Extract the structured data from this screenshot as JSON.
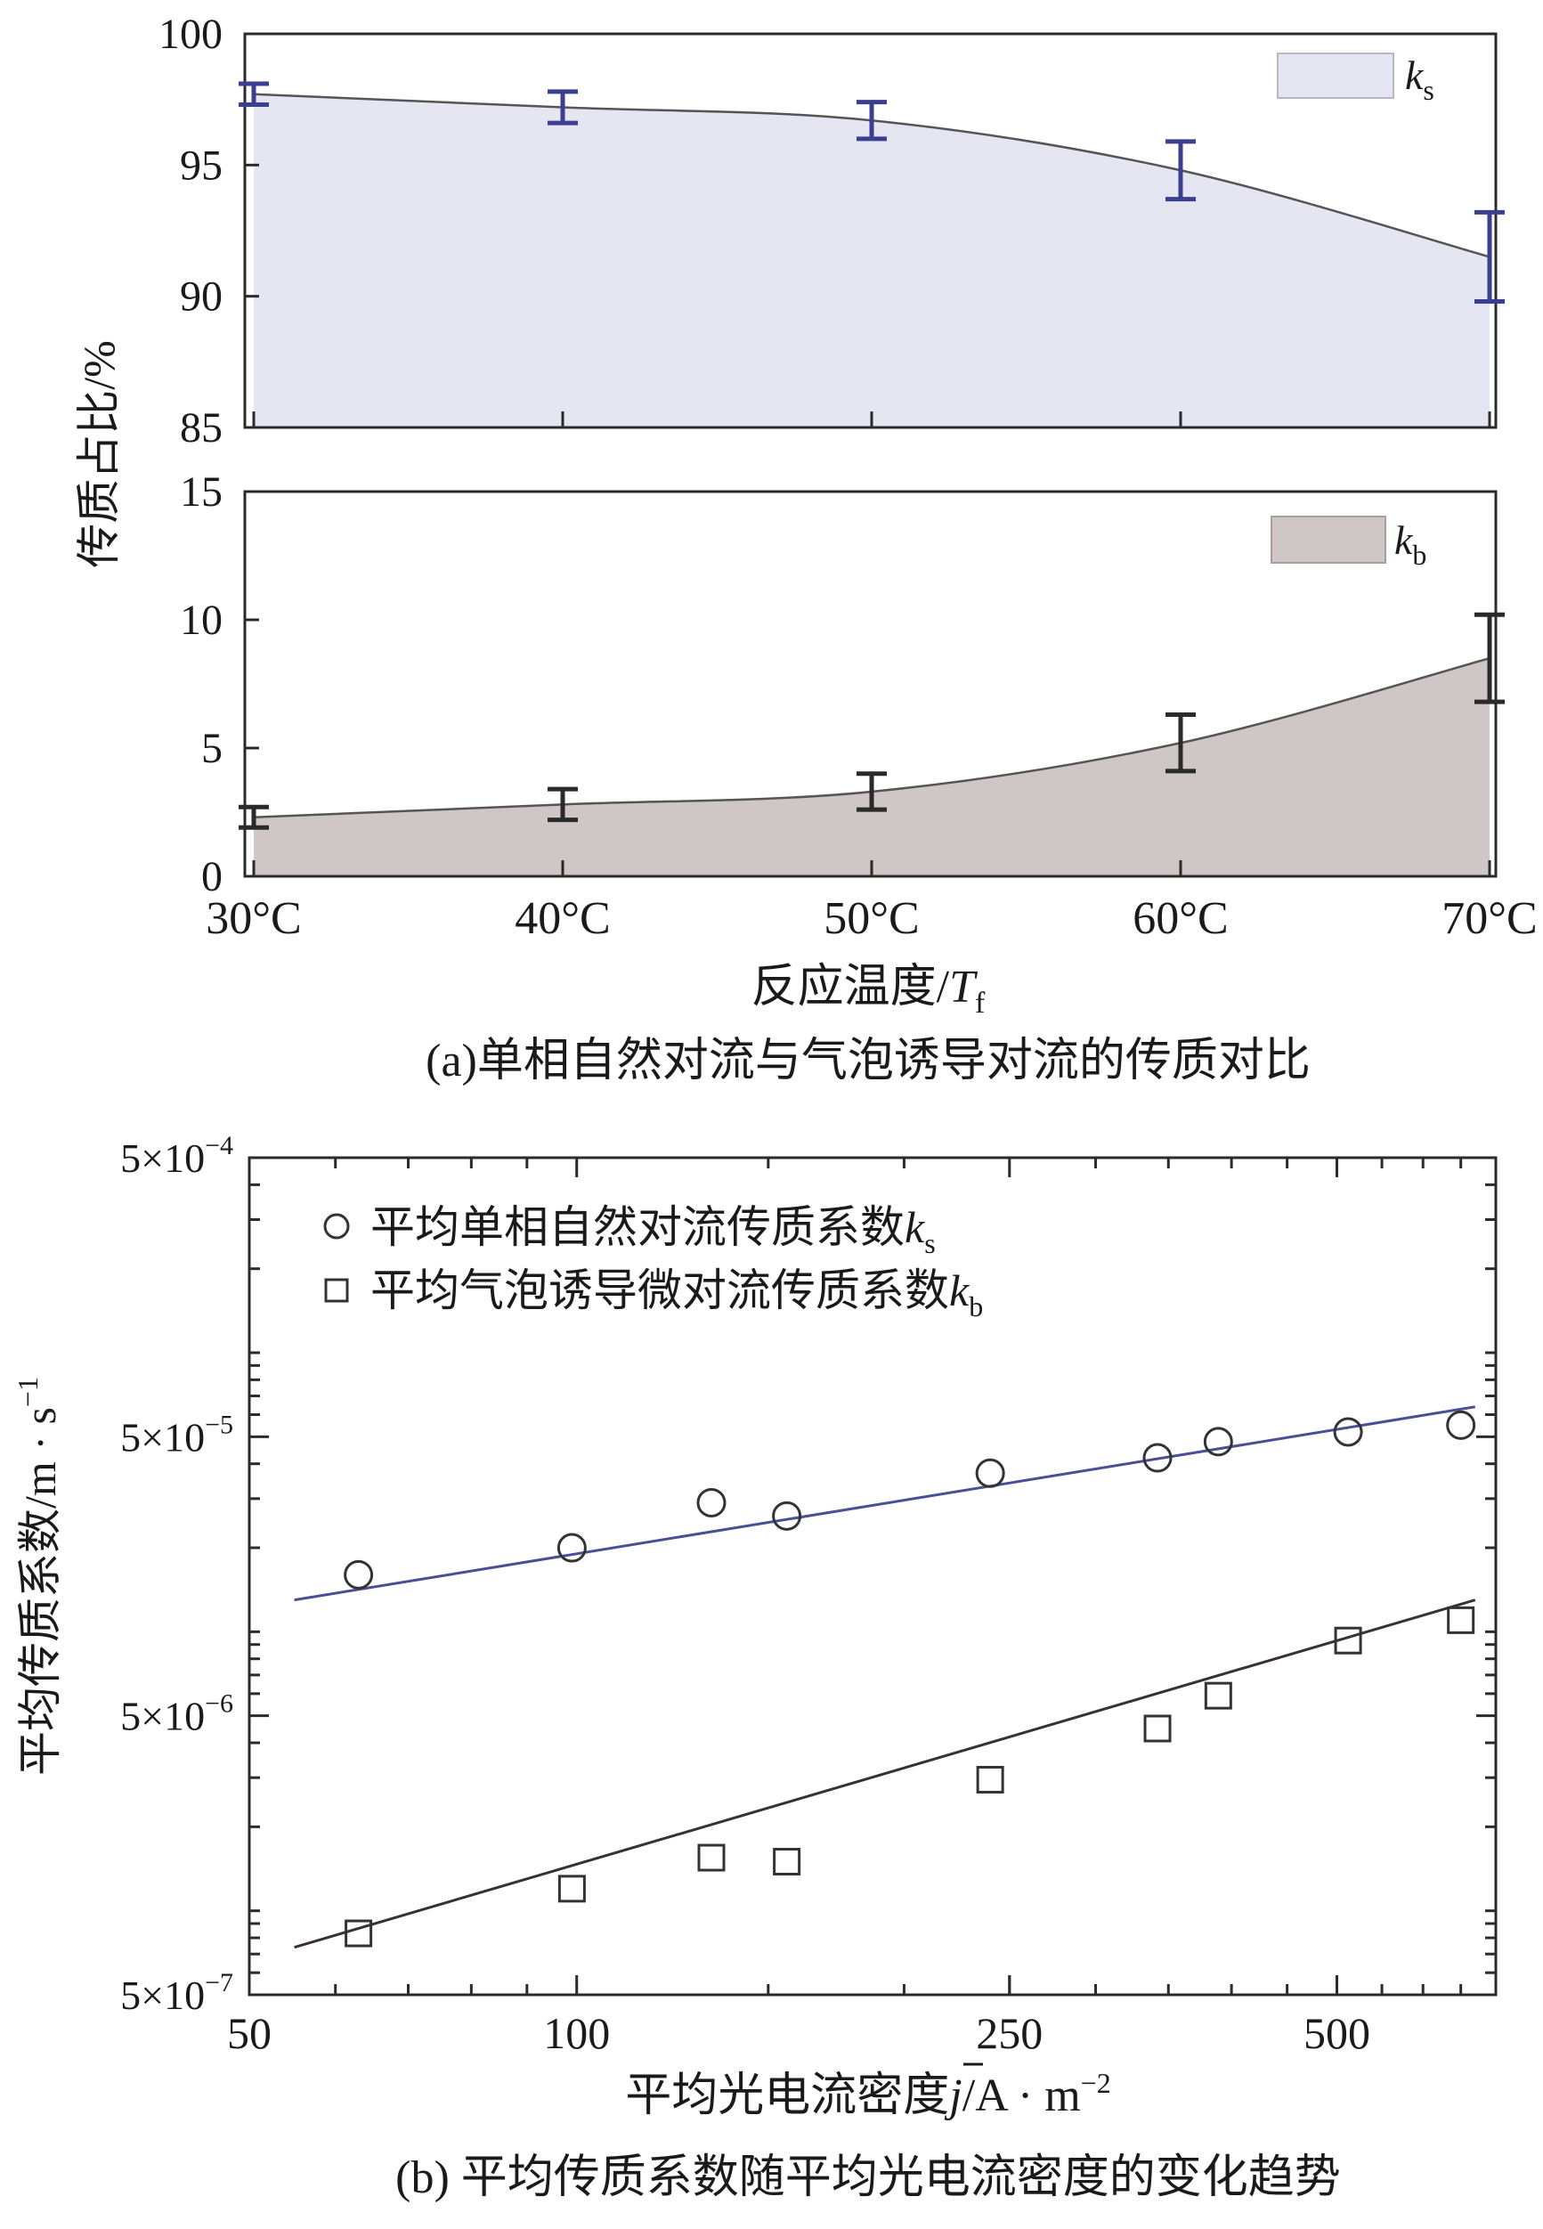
{
  "figure_a": {
    "caption": "(a)单相自然对流与气泡诱导对流的传质对比",
    "ylabel": "传质占比/%",
    "xlabel_main": "反应温度/",
    "xlabel_var": "T",
    "xlabel_sub": "f",
    "top_legend_var": "k",
    "top_legend_sub": "s",
    "bottom_legend_var": "k",
    "bottom_legend_sub": "b",
    "colors": {
      "ks_fill": "#e6e6f2",
      "ks_error": "#3b3f8f",
      "kb_fill": "#cfc6c6",
      "kb_error": "#2a2a2a",
      "line": "#555555"
    }
  },
  "figure_b": {
    "caption": "(b) 平均传质系数随平均光电流密度的变化趋势",
    "ylabel": "平均传质系数/m · s",
    "ylabel_sup": "−1",
    "xlabel_main": "平均光电流密度",
    "xlabel_var": "j",
    "xlabel_unit": "/A · m",
    "xlabel_sup": "−2",
    "legend_ks_text": "平均单相自然对流传质系数",
    "legend_ks_var": "k",
    "legend_ks_sub": "s",
    "legend_kb_text": "平均气泡诱导微对流传质系数",
    "legend_kb_var": "k",
    "legend_kb_sub": "b",
    "colors": {
      "ks_line": "#4a4f95",
      "kb_line": "#3a3030",
      "marker": "#333333"
    }
  },
  "chart_data": [
    {
      "type": "area",
      "panel": "a-top",
      "series_name": "ks",
      "categories": [
        "30°C",
        "40°C",
        "50°C",
        "60°C",
        "70°C"
      ],
      "x": [
        30,
        40,
        50,
        60,
        70
      ],
      "values": [
        97.7,
        97.2,
        96.7,
        94.8,
        91.5
      ],
      "error": [
        0.4,
        0.6,
        0.7,
        1.1,
        1.7
      ],
      "ylim": [
        85,
        100
      ],
      "yticks": [
        85,
        90,
        95,
        100
      ],
      "legend": "top-right"
    },
    {
      "type": "area",
      "panel": "a-bottom",
      "series_name": "kb",
      "categories": [
        "30°C",
        "40°C",
        "50°C",
        "60°C",
        "70°C"
      ],
      "x": [
        30,
        40,
        50,
        60,
        70
      ],
      "values": [
        2.3,
        2.8,
        3.3,
        5.2,
        8.5
      ],
      "error": [
        0.4,
        0.6,
        0.7,
        1.1,
        1.7
      ],
      "ylim": [
        0,
        15
      ],
      "yticks": [
        0,
        5,
        10,
        15
      ],
      "xlabel": "反应温度/Tf",
      "legend": "top-right"
    },
    {
      "type": "scatter",
      "panel": "b",
      "xscale": "log",
      "yscale": "log",
      "xlim": [
        50,
        700
      ],
      "ylim": [
        5e-07,
        0.0005
      ],
      "xticks": [
        50,
        100,
        250,
        500
      ],
      "xtick_labels": [
        "50",
        "100",
        "250",
        "500"
      ],
      "yticks": [
        5e-07,
        5e-06,
        5e-05,
        0.0005
      ],
      "ytick_labels": [
        {
          "mant": "5×10",
          "exp": "−7"
        },
        {
          "mant": "5×10",
          "exp": "−6"
        },
        {
          "mant": "5×10",
          "exp": "−5"
        },
        {
          "mant": "5×10",
          "exp": "−4"
        }
      ],
      "series": [
        {
          "name": "平均单相自然对流传质系数ks",
          "marker": "circle",
          "x": [
            63,
            99,
            133,
            156,
            240,
            342,
            389,
            512,
            650
          ],
          "y": [
            1.6e-05,
            2e-05,
            2.9e-05,
            2.6e-05,
            3.7e-05,
            4.2e-05,
            4.8e-05,
            5.2e-05,
            5.5e-05
          ],
          "fit": {
            "x": [
              55,
              670
            ],
            "y": [
              1.3e-05,
              6.4e-05
            ]
          }
        },
        {
          "name": "平均气泡诱导微对流传质系数kb",
          "marker": "square",
          "x": [
            63,
            99,
            133,
            156,
            240,
            342,
            389,
            512,
            650
          ],
          "y": [
            8.3e-07,
            1.2e-06,
            1.55e-06,
            1.5e-06,
            2.95e-06,
            4.5e-06,
            5.9e-06,
            9.3e-06,
            1.1e-05
          ],
          "fit": {
            "x": [
              55,
              670
            ],
            "y": [
              7.4e-07,
              1.3e-05
            ]
          }
        }
      ]
    }
  ]
}
